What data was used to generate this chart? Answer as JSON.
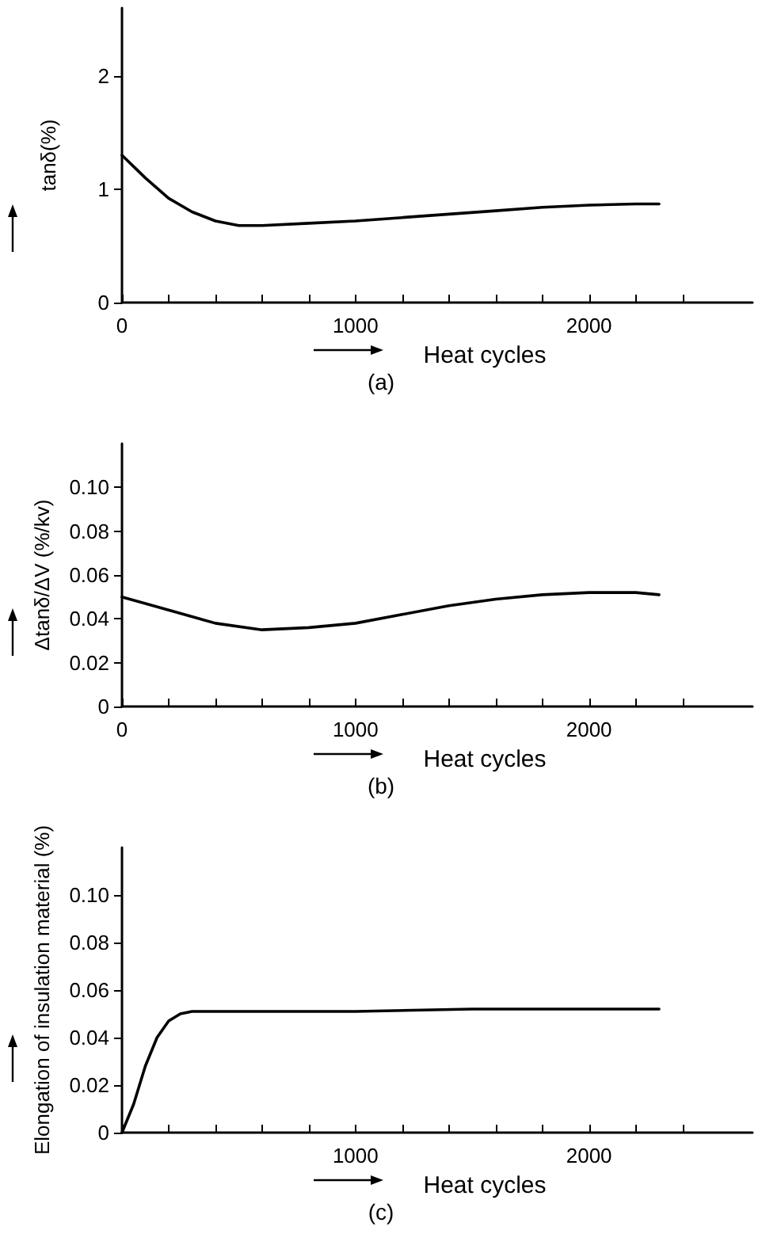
{
  "chart_data": [
    {
      "type": "line",
      "title": "(a)",
      "xlabel": "Heat cycles",
      "ylabel": "tanδ(%)",
      "color": "#000000",
      "x": [
        0,
        100,
        200,
        300,
        400,
        500,
        600,
        800,
        1000,
        1200,
        1400,
        1600,
        1800,
        2000,
        2200,
        2300
      ],
      "values": [
        1.3,
        1.1,
        0.92,
        0.8,
        0.72,
        0.68,
        0.68,
        0.7,
        0.72,
        0.75,
        0.78,
        0.81,
        0.84,
        0.86,
        0.87,
        0.87
      ],
      "xlim": [
        0,
        2700
      ],
      "xticks": [
        0,
        {
          "value": 200,
          "label": null
        },
        {
          "value": 400,
          "label": null
        },
        {
          "value": 600,
          "label": null
        },
        {
          "value": 800,
          "label": null
        },
        1000,
        {
          "value": 1200,
          "label": null
        },
        {
          "value": 1400,
          "label": null
        },
        {
          "value": 1600,
          "label": null
        },
        {
          "value": 1800,
          "label": null
        },
        2000,
        {
          "value": 2200,
          "label": null
        },
        {
          "value": 2400,
          "label": null
        }
      ],
      "ylim": [
        0,
        2.6
      ],
      "yticks": [
        0,
        1,
        2
      ]
    },
    {
      "type": "line",
      "title": "(b)",
      "xlabel": "Heat cycles",
      "ylabel": "Δtanδ/ΔV (%/kv)",
      "color": "#000000",
      "x": [
        0,
        200,
        400,
        600,
        800,
        1000,
        1200,
        1400,
        1600,
        1800,
        2000,
        2200,
        2300
      ],
      "values": [
        0.05,
        0.044,
        0.038,
        0.035,
        0.036,
        0.038,
        0.042,
        0.046,
        0.049,
        0.051,
        0.052,
        0.052,
        0.051
      ],
      "xlim": [
        0,
        2700
      ],
      "xticks": [
        0,
        {
          "value": 200,
          "label": null
        },
        {
          "value": 400,
          "label": null
        },
        {
          "value": 600,
          "label": null
        },
        {
          "value": 800,
          "label": null
        },
        1000,
        {
          "value": 1200,
          "label": null
        },
        {
          "value": 1400,
          "label": null
        },
        {
          "value": 1600,
          "label": null
        },
        {
          "value": 1800,
          "label": null
        },
        2000,
        {
          "value": 2200,
          "label": null
        },
        {
          "value": 2400,
          "label": null
        }
      ],
      "ylim": [
        0,
        0.12
      ],
      "yticks": [
        0,
        {
          "value": 0.02,
          "label": "0.02"
        },
        {
          "value": 0.04,
          "label": "0.04"
        },
        {
          "value": 0.06,
          "label": "0.06"
        },
        {
          "value": 0.08,
          "label": "0.08"
        },
        {
          "value": 0.1,
          "label": "0.10"
        }
      ]
    },
    {
      "type": "line",
      "title": "(c)",
      "xlabel": "Heat cycles",
      "ylabel": "Elongation of insulation material (%)",
      "color": "#000000",
      "x": [
        0,
        50,
        100,
        150,
        200,
        250,
        300,
        500,
        1000,
        1500,
        2000,
        2300
      ],
      "values": [
        0,
        0.012,
        0.028,
        0.04,
        0.047,
        0.05,
        0.051,
        0.051,
        0.051,
        0.052,
        0.052,
        0.052
      ],
      "xlim": [
        0,
        2700
      ],
      "xticks": [
        {
          "value": 0,
          "label": null
        },
        {
          "value": 200,
          "label": null
        },
        {
          "value": 400,
          "label": null
        },
        {
          "value": 600,
          "label": null
        },
        {
          "value": 800,
          "label": null
        },
        1000,
        {
          "value": 1200,
          "label": null
        },
        {
          "value": 1400,
          "label": null
        },
        {
          "value": 1600,
          "label": null
        },
        {
          "value": 1800,
          "label": null
        },
        2000,
        {
          "value": 2200,
          "label": null
        },
        {
          "value": 2400,
          "label": null
        }
      ],
      "ylim": [
        0,
        0.12
      ],
      "yticks": [
        0,
        {
          "value": 0.02,
          "label": "0.02"
        },
        {
          "value": 0.04,
          "label": "0.04"
        },
        {
          "value": 0.06,
          "label": "0.06"
        },
        {
          "value": 0.08,
          "label": "0.08"
        },
        {
          "value": 0.1,
          "label": "0.10"
        }
      ]
    }
  ]
}
